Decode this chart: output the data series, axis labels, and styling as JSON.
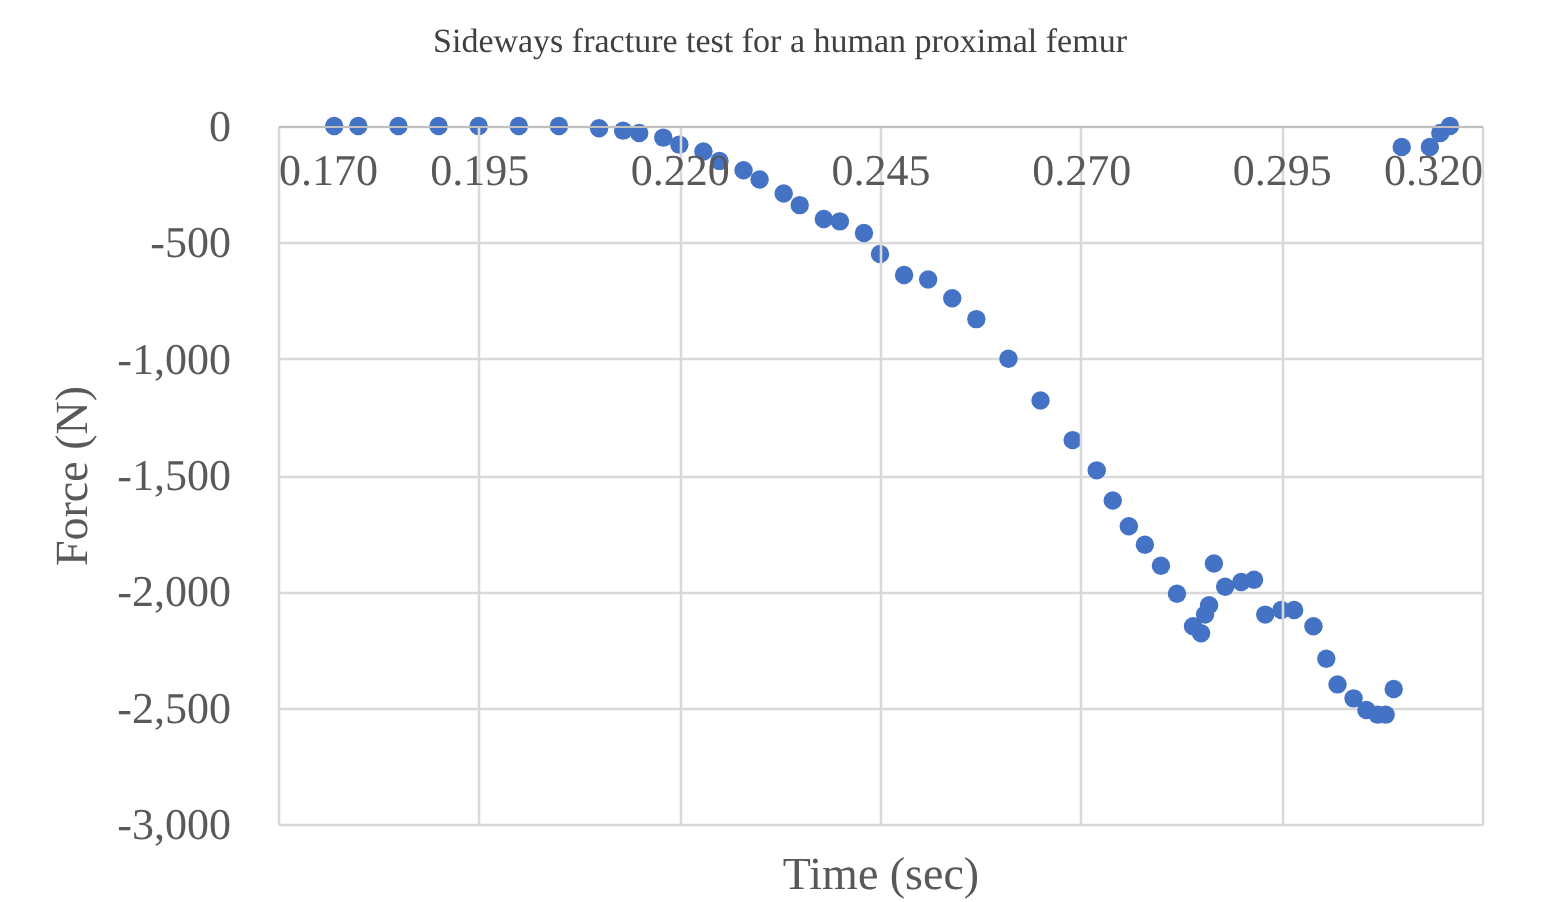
{
  "chart_data": {
    "type": "scatter",
    "title": "Sideways fracture test for a human proximal femur",
    "xlabel": "Time (sec)",
    "ylabel": "Force (N)",
    "x": [
      0.177,
      0.18,
      0.185,
      0.19,
      0.195,
      0.2,
      0.205,
      0.21,
      0.213,
      0.215,
      0.218,
      0.22,
      0.223,
      0.225,
      0.228,
      0.23,
      0.233,
      0.235,
      0.238,
      0.24,
      0.243,
      0.245,
      0.248,
      0.251,
      0.254,
      0.257,
      0.261,
      0.265,
      0.269,
      0.272,
      0.274,
      0.276,
      0.278,
      0.28,
      0.282,
      0.284,
      0.285,
      0.2855,
      0.286,
      0.2866,
      0.288,
      0.29,
      0.2916,
      0.293,
      0.295,
      0.2966,
      0.299,
      0.3006,
      0.302,
      0.304,
      0.3056,
      0.307,
      0.308,
      0.309,
      0.31,
      0.3135,
      0.3148,
      0.316
    ],
    "series": [
      {
        "color": "#4472c4",
        "values": [
          0,
          0,
          0,
          0,
          0,
          0,
          0,
          -10,
          -20,
          -30,
          -50,
          -80,
          -110,
          -150,
          -190,
          -230,
          -290,
          -340,
          -400,
          -410,
          -460,
          -550,
          -640,
          -660,
          -740,
          -830,
          -1000,
          -1180,
          -1350,
          -1480,
          -1610,
          -1720,
          -1800,
          -1890,
          -2010,
          -2150,
          -2180,
          -2100,
          -2060,
          -1880,
          -1980,
          -1960,
          -1950,
          -2100,
          -2080,
          -2080,
          -2150,
          -2290,
          -2400,
          -2460,
          -2510,
          -2530,
          -2530,
          -2420,
          -90,
          -90,
          -30,
          0
        ]
      }
    ],
    "xlim": [
      0.17,
      0.32
    ],
    "xticks": [
      {
        "value": 0.17,
        "label": "0.170"
      },
      {
        "value": 0.195,
        "label": "0.195"
      },
      {
        "value": 0.22,
        "label": "0.220"
      },
      {
        "value": 0.245,
        "label": "0.245"
      },
      {
        "value": 0.27,
        "label": "0.270"
      },
      {
        "value": 0.295,
        "label": "0.295"
      },
      {
        "value": 0.32,
        "label": "0.320"
      }
    ],
    "ylim": [
      -3000,
      0
    ],
    "yticks": [
      0,
      -500,
      {
        "value": -1000,
        "label": "-1,000"
      },
      {
        "value": -1500,
        "label": "-1,500"
      },
      {
        "value": -2000,
        "label": "-2,000"
      },
      {
        "value": -2500,
        "label": "-2,500"
      },
      {
        "value": -3000,
        "label": "-3,000"
      }
    ],
    "grid": true,
    "marker": "circle"
  }
}
